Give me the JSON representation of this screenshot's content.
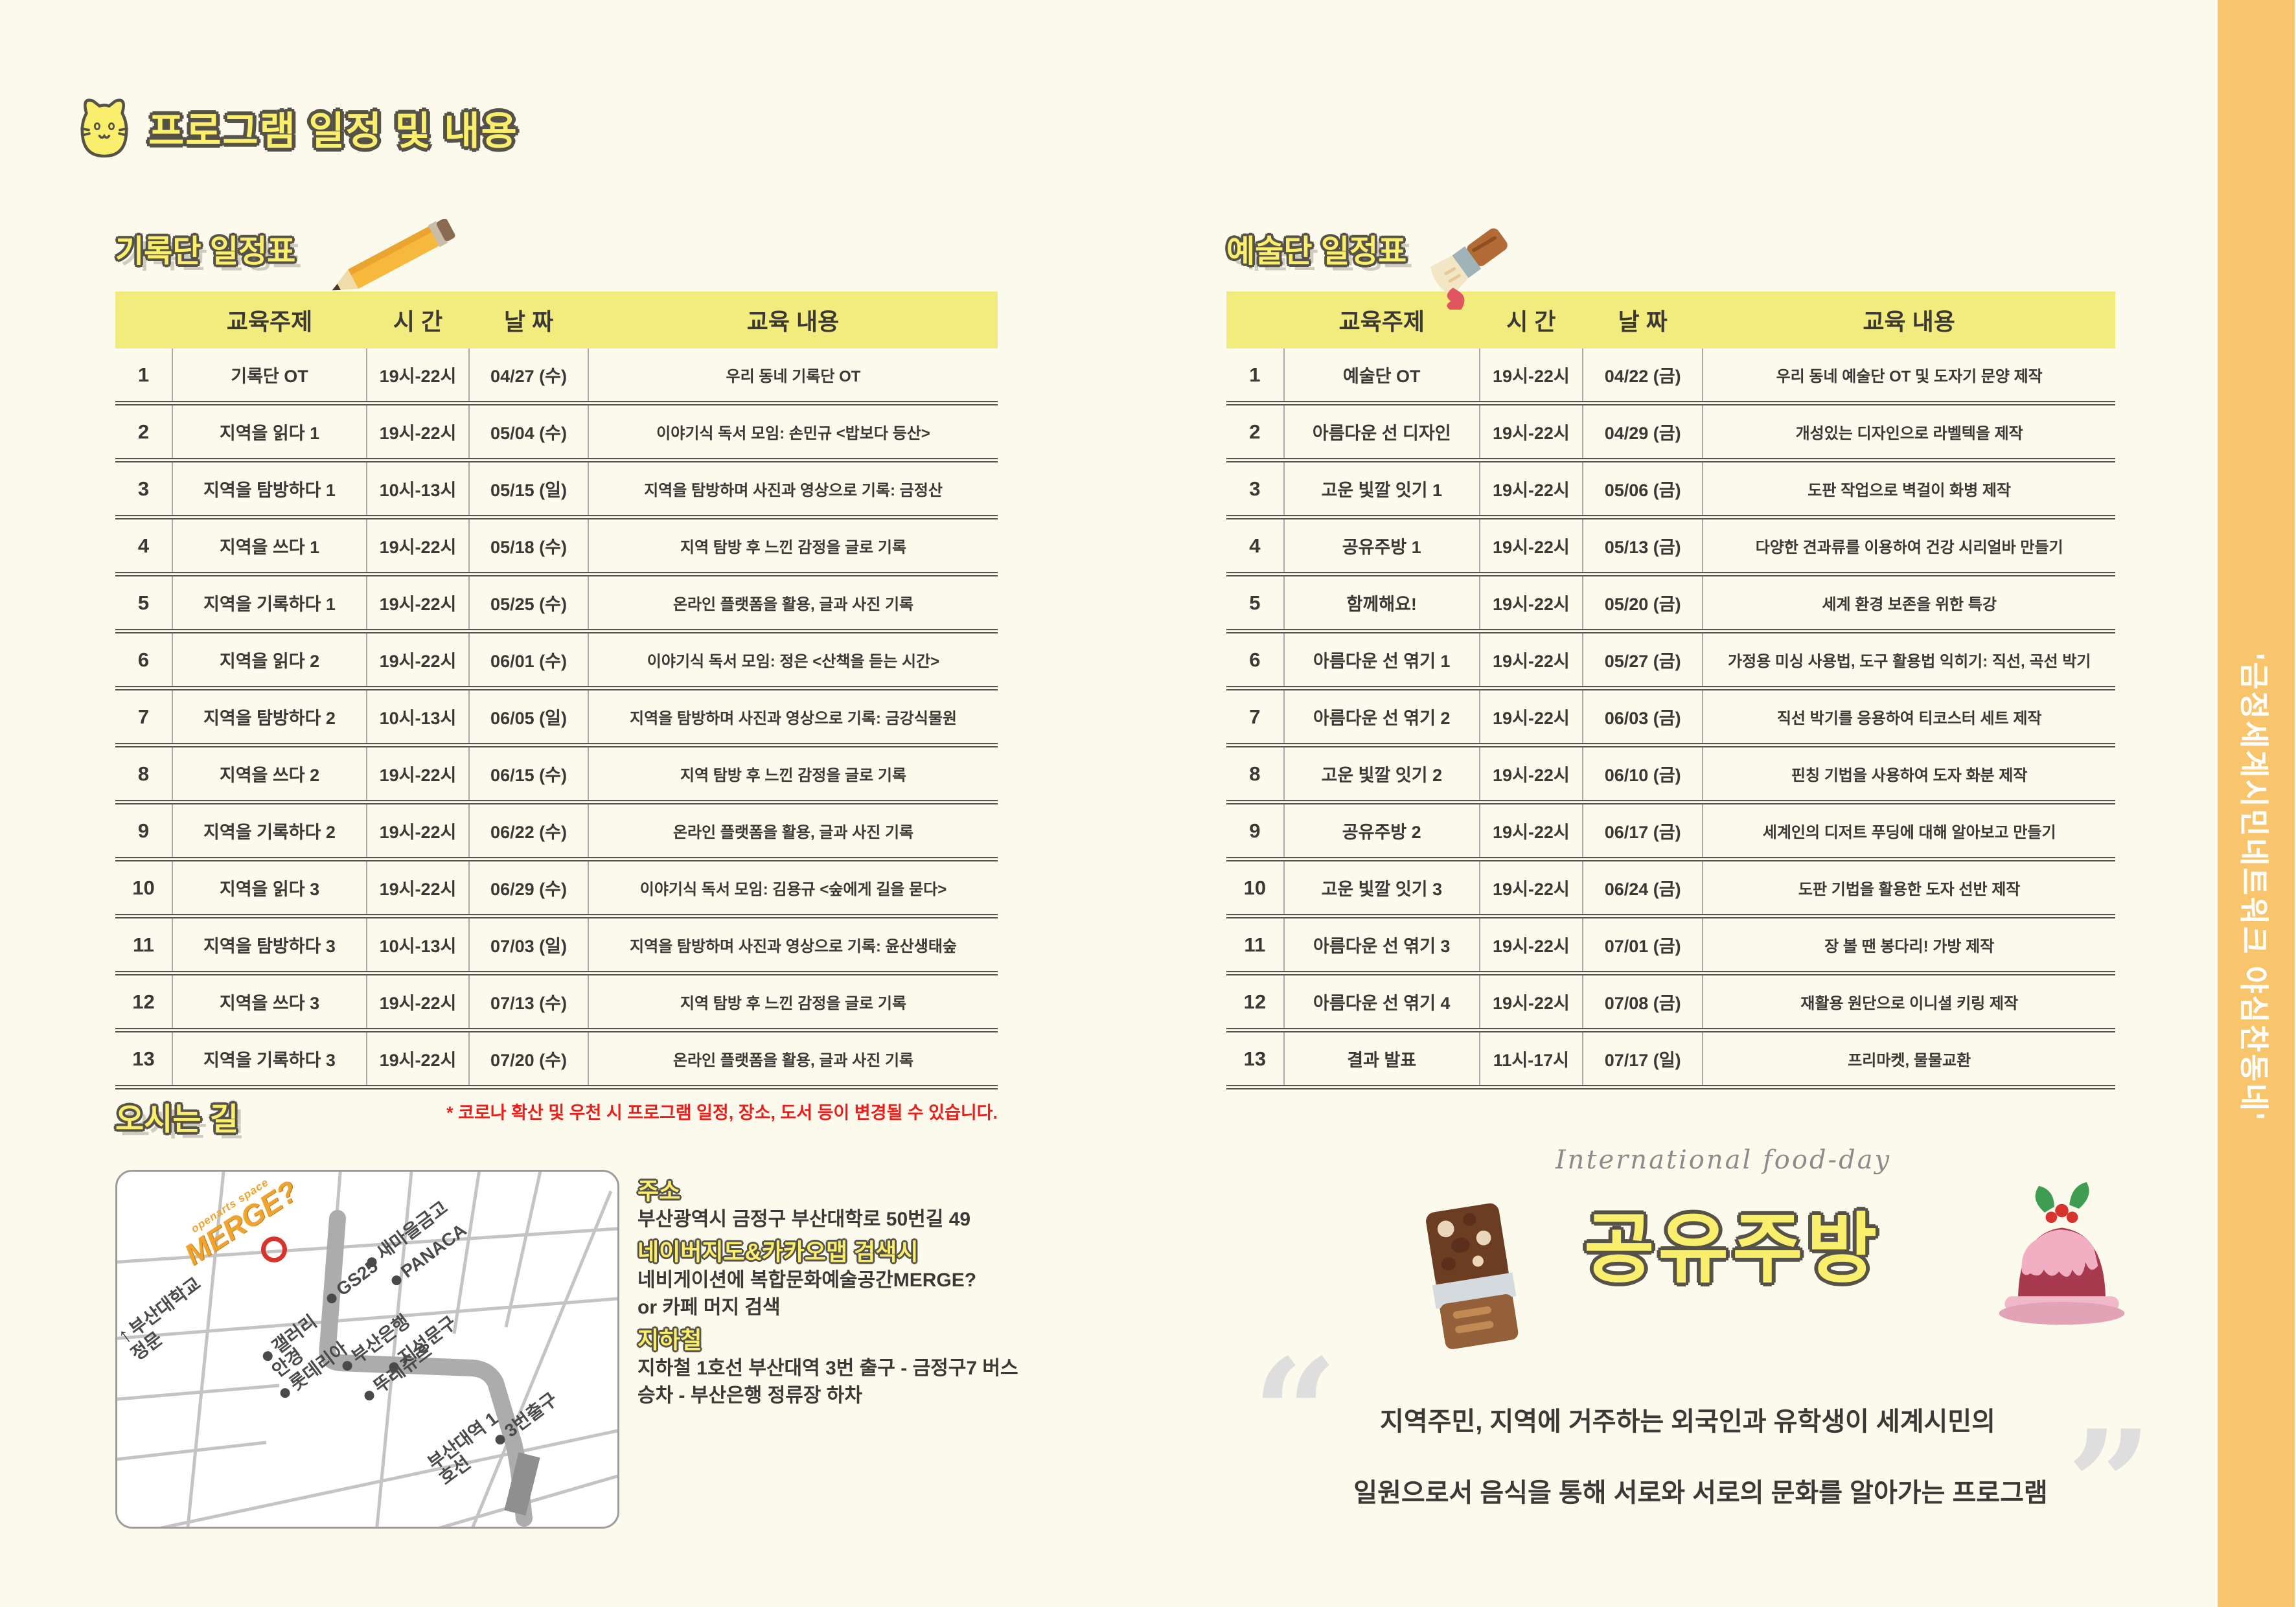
{
  "page": {
    "title": "프로그램 일정 및 내용",
    "side_banner_text": "'금정세계시민네트워크 야심찬동네'",
    "colors": {
      "background": "#FCFAEC",
      "accent_yellow": "#F9EF6D",
      "table_header_yellow": "#F1EC7D",
      "side_strip_orange": "#F9C56C",
      "note_red": "#E8201D",
      "text_dark": "#3B3835"
    }
  },
  "record_table": {
    "title": "기록단 일정표",
    "icon": "pencil-icon",
    "headers": [
      "교육주제",
      "시 간",
      "날 짜",
      "교육 내용"
    ],
    "rows": [
      {
        "no": "1",
        "topic": "기록단 OT",
        "time": "19시-22시",
        "date": "04/27 (수)",
        "content": "우리 동네 기록단 OT"
      },
      {
        "no": "2",
        "topic": "지역을 읽다 1",
        "time": "19시-22시",
        "date": "05/04 (수)",
        "content": "이야기식 독서 모임: 손민규 <밥보다 등산>"
      },
      {
        "no": "3",
        "topic": "지역을 탐방하다 1",
        "time": "10시-13시",
        "date": "05/15 (일)",
        "content": "지역을 탐방하며 사진과 영상으로 기록: 금정산"
      },
      {
        "no": "4",
        "topic": "지역을 쓰다 1",
        "time": "19시-22시",
        "date": "05/18 (수)",
        "content": "지역 탐방 후 느낀 감정을 글로 기록"
      },
      {
        "no": "5",
        "topic": "지역을 기록하다 1",
        "time": "19시-22시",
        "date": "05/25 (수)",
        "content": "온라인 플랫폼을 활용, 글과 사진 기록"
      },
      {
        "no": "6",
        "topic": "지역을 읽다 2",
        "time": "19시-22시",
        "date": "06/01 (수)",
        "content": "이야기식 독서 모임: 정은 <산책을 듣는 시간>"
      },
      {
        "no": "7",
        "topic": "지역을 탐방하다 2",
        "time": "10시-13시",
        "date": "06/05 (일)",
        "content": "지역을 탐방하며 사진과 영상으로 기록: 금강식물원"
      },
      {
        "no": "8",
        "topic": "지역을 쓰다 2",
        "time": "19시-22시",
        "date": "06/15 (수)",
        "content": "지역 탐방 후 느낀 감정을 글로 기록"
      },
      {
        "no": "9",
        "topic": "지역을 기록하다 2",
        "time": "19시-22시",
        "date": "06/22 (수)",
        "content": "온라인 플랫폼을 활용, 글과 사진 기록"
      },
      {
        "no": "10",
        "topic": "지역을 읽다 3",
        "time": "19시-22시",
        "date": "06/29 (수)",
        "content": "이야기식 독서 모임: 김용규 <숲에게 길을 묻다>"
      },
      {
        "no": "11",
        "topic": "지역을 탐방하다 3",
        "time": "10시-13시",
        "date": "07/03 (일)",
        "content": "지역을 탐방하며 사진과 영상으로 기록: 윤산생태숲"
      },
      {
        "no": "12",
        "topic": "지역을 쓰다 3",
        "time": "19시-22시",
        "date": "07/13 (수)",
        "content": "지역 탐방 후 느낀 감정을 글로 기록"
      },
      {
        "no": "13",
        "topic": "지역을 기록하다 3",
        "time": "19시-22시",
        "date": "07/20 (수)",
        "content": "온라인 플랫폼을 활용, 글과 사진 기록"
      }
    ],
    "note": "* 코로나 확산 및 우천 시 프로그램 일정, 장소, 도서 등이 변경될 수 있습니다."
  },
  "art_table": {
    "title": "예술단 일정표",
    "icon": "paintbrush-icon",
    "headers": [
      "교육주제",
      "시 간",
      "날 짜",
      "교육 내용"
    ],
    "rows": [
      {
        "no": "1",
        "topic": "예술단 OT",
        "time": "19시-22시",
        "date": "04/22 (금)",
        "content": "우리 동네 예술단 OT 및 도자기 문양 제작"
      },
      {
        "no": "2",
        "topic": "아름다운 선 디자인",
        "time": "19시-22시",
        "date": "04/29 (금)",
        "content": "개성있는 디자인으로 라벨텍을 제작"
      },
      {
        "no": "3",
        "topic": "고운 빛깔 잇기 1",
        "time": "19시-22시",
        "date": "05/06 (금)",
        "content": "도판 작업으로 벽걸이 화병 제작"
      },
      {
        "no": "4",
        "topic": "공유주방 1",
        "time": "19시-22시",
        "date": "05/13 (금)",
        "content": "다양한 견과류를 이용하여 건강 시리얼바 만들기"
      },
      {
        "no": "5",
        "topic": "함께해요!",
        "time": "19시-22시",
        "date": "05/20 (금)",
        "content": "세계 환경 보존을 위한 특강"
      },
      {
        "no": "6",
        "topic": "아름다운 선 엮기 1",
        "time": "19시-22시",
        "date": "05/27 (금)",
        "content": "가정용 미싱 사용법, 도구 활용법 익히기: 직선, 곡선 박기"
      },
      {
        "no": "7",
        "topic": "아름다운 선 엮기 2",
        "time": "19시-22시",
        "date": "06/03 (금)",
        "content": "직선 박기를 응용하여 티코스터 세트 제작"
      },
      {
        "no": "8",
        "topic": "고운 빛깔 잇기 2",
        "time": "19시-22시",
        "date": "06/10 (금)",
        "content": "핀칭 기법을 사용하여 도자 화분 제작"
      },
      {
        "no": "9",
        "topic": "공유주방 2",
        "time": "19시-22시",
        "date": "06/17 (금)",
        "content": "세계인의 디저트 푸딩에 대해 알아보고 만들기"
      },
      {
        "no": "10",
        "topic": "고운 빛깔 잇기 3",
        "time": "19시-22시",
        "date": "06/24 (금)",
        "content": "도판 기법을 활용한 도자 선반 제작"
      },
      {
        "no": "11",
        "topic": "아름다운 선 엮기 3",
        "time": "19시-22시",
        "date": "07/01 (금)",
        "content": "장 볼 땐 봉다리! 가방 제작"
      },
      {
        "no": "12",
        "topic": "아름다운 선 엮기 4",
        "time": "19시-22시",
        "date": "07/08 (금)",
        "content": "재활용 원단으로 이니셜 키링 제작"
      },
      {
        "no": "13",
        "topic": "결과 발표",
        "time": "11시-17시",
        "date": "07/17 (일)",
        "content": "프리마켓, 물물교환"
      }
    ]
  },
  "directions": {
    "title": "오시는 길",
    "map": {
      "logo_top": "openarts space",
      "logo_main": "MERGE?",
      "labels": [
        {
          "text": "새마을금고"
        },
        {
          "text": "PANACA"
        },
        {
          "text": "GS25"
        },
        {
          "text": "갤러리 안경"
        },
        {
          "text": "부산은행"
        },
        {
          "text": "지성문구"
        },
        {
          "text": "롯데리아"
        },
        {
          "text": "뚜레쥬르"
        },
        {
          "text": "부산대학교 정문"
        },
        {
          "text": "3번출구"
        },
        {
          "text": "부산대역 1호선"
        }
      ]
    },
    "address_heading": "주소",
    "address": "부산광역시 금정구 부산대학로 50번길 49",
    "search_heading": "네이버지도&카카오맵 검색시",
    "search_line1": "네비게이션에 복합문화예술공간MERGE?",
    "search_line2": "or 카페 머지 검색",
    "subway_heading": "지하철",
    "subway_line1": "지하철 1호선 부산대역 3번 출구 - 금정구7 버스",
    "subway_line2": "승차 - 부산은행 정류장 하차"
  },
  "food_day": {
    "script_title": "International food-day",
    "title": "공유주방",
    "quote_line1": "지역주민, 지역에 거주하는 외국인과 유학생이 세계시민의",
    "quote_line2": "일원으로서 음식을 통해 서로와 서로의 문화를 알아가는 프로그램"
  }
}
